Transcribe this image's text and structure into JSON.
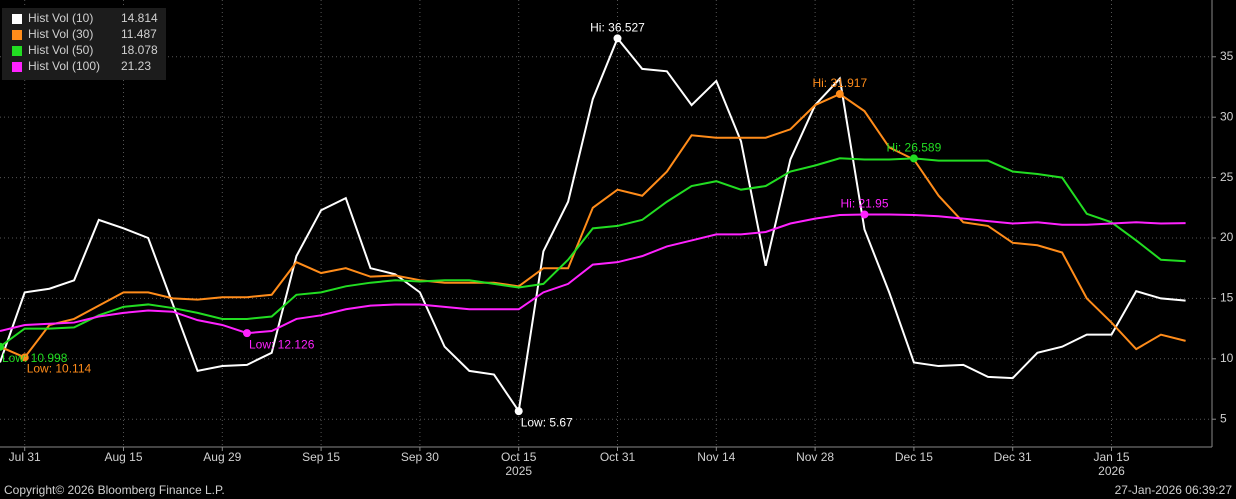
{
  "chart_data": {
    "type": "line",
    "categories": [
      null,
      "Jul 31",
      null,
      null,
      null,
      "Aug 15",
      null,
      null,
      null,
      "Aug 29",
      null,
      null,
      null,
      "Sep 15",
      null,
      null,
      null,
      "Sep 30",
      null,
      null,
      null,
      "Oct 15",
      null,
      null,
      null,
      "Oct 31",
      null,
      null,
      null,
      "Nov 14",
      null,
      null,
      null,
      "Nov 28",
      null,
      null,
      null,
      "Dec 15",
      null,
      null,
      null,
      "Dec 31",
      null,
      null,
      null,
      "Jan 15",
      null,
      null,
      null
    ],
    "year_labels": [
      null,
      null,
      null,
      null,
      null,
      null,
      null,
      null,
      null,
      null,
      null,
      null,
      null,
      null,
      null,
      null,
      null,
      null,
      null,
      null,
      null,
      "2025",
      null,
      null,
      null,
      null,
      null,
      null,
      null,
      null,
      null,
      null,
      null,
      null,
      null,
      null,
      null,
      null,
      null,
      null,
      null,
      null,
      null,
      null,
      null,
      "2026",
      null,
      null,
      null
    ],
    "series": [
      {
        "name": "Hist Vol (10)",
        "color": "#ffffff",
        "values": [
          9.7,
          15.5,
          15.8,
          16.5,
          21.5,
          20.8,
          20,
          14.5,
          9,
          9.4,
          9.5,
          10.5,
          18.5,
          22.3,
          23.3,
          17.5,
          17,
          15.5,
          11,
          9,
          8.7,
          5.67,
          18.9,
          23,
          31.5,
          36.527,
          34,
          33.8,
          31,
          33,
          28,
          17.7,
          26.5,
          31,
          33.2,
          20.7,
          15.5,
          9.7,
          9.4,
          9.5,
          8.5,
          8.4,
          10.5,
          11,
          12,
          12,
          15.6,
          15,
          14.814
        ],
        "annotations": [
          {
            "label": "Hi: 36.527",
            "value": 36.527
          },
          {
            "label": "Low: 5.67",
            "value": 5.67
          }
        ]
      },
      {
        "name": "Hist Vol (30)",
        "color": "#ff8c1a",
        "values": [
          11,
          10.114,
          12.8,
          13.3,
          14.4,
          15.5,
          15.5,
          15,
          14.9,
          15.1,
          15.1,
          15.3,
          18,
          17.1,
          17.5,
          16.8,
          16.9,
          16.5,
          16.3,
          16.3,
          16.3,
          16,
          17.5,
          17.5,
          22.5,
          24,
          23.5,
          25.5,
          28.5,
          28.3,
          28.3,
          28.3,
          29,
          31,
          31.917,
          30.5,
          27.5,
          26.5,
          23.5,
          21.3,
          21,
          19.6,
          19.4,
          18.8,
          15,
          13,
          10.8,
          12,
          11.487
        ],
        "annotations": [
          {
            "label": "Hi: 31.917",
            "value": 31.917
          },
          {
            "label": "Low: 10.114",
            "value": 10.114
          }
        ]
      },
      {
        "name": "Hist Vol (50)",
        "color": "#22dd22",
        "values": [
          10.998,
          12.5,
          12.5,
          12.6,
          13.6,
          14.3,
          14.5,
          14.2,
          13.8,
          13.3,
          13.3,
          13.5,
          15.3,
          15.5,
          16,
          16.3,
          16.5,
          16.4,
          16.5,
          16.5,
          16.2,
          15.9,
          16.2,
          18.2,
          20.8,
          21,
          21.5,
          23,
          24.3,
          24.7,
          24,
          24.3,
          25.5,
          26,
          26.6,
          26.5,
          26.5,
          26.589,
          26.4,
          26.4,
          26.4,
          25.5,
          25.3,
          25,
          22,
          21.3,
          19.8,
          18.2,
          18.078
        ],
        "annotations": [
          {
            "label": "Hi: 26.589",
            "value": 26.589
          },
          {
            "label": "Low: 10.998",
            "value": 10.998
          }
        ]
      },
      {
        "name": "Hist Vol (100)",
        "color": "#ff22ff",
        "values": [
          12.3,
          12.8,
          12.9,
          13,
          13.5,
          13.8,
          14,
          13.9,
          13.2,
          12.8,
          12.126,
          12.3,
          13.3,
          13.6,
          14.1,
          14.4,
          14.5,
          14.5,
          14.3,
          14.1,
          14.1,
          14.1,
          15.5,
          16.2,
          17.8,
          18,
          18.5,
          19.3,
          19.8,
          20.3,
          20.3,
          20.5,
          21.2,
          21.6,
          21.9,
          21.95,
          21.94,
          21.9,
          21.8,
          21.6,
          21.4,
          21.2,
          21.3,
          21.1,
          21.1,
          21.2,
          21.3,
          21.2,
          21.23
        ],
        "annotations": [
          {
            "label": "Hi: 21.95",
            "value": 21.95
          },
          {
            "label": "Low: 12.126",
            "value": 12.126
          }
        ]
      }
    ],
    "ylim": [
      2.7,
      39.7
    ],
    "yticks": [
      5,
      10,
      15,
      20,
      25,
      30,
      35
    ],
    "grid": true,
    "legend": "top-left"
  },
  "footer": {
    "left": "Copyright© 2026 Bloomberg Finance L.P.",
    "right": "27-Jan-2026 06:39:27"
  }
}
